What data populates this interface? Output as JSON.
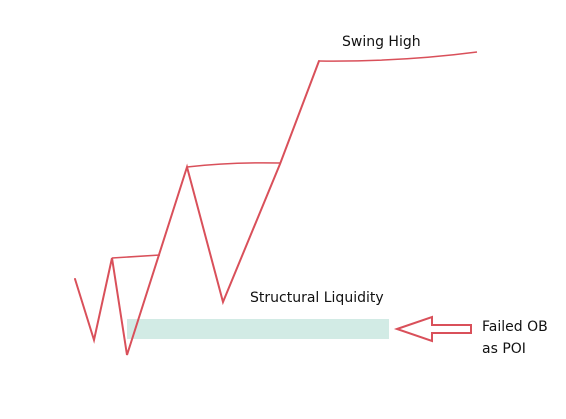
{
  "labels": {
    "swing_high": "Swing High",
    "structural_liquidity": "Structural Liquidity",
    "failed_ob_line1": "Failed OB",
    "failed_ob_line2": "as POI"
  },
  "colors": {
    "line": "#d9505a",
    "zone": "#d2ebe5",
    "text": "#111111",
    "background": "#ffffff"
  }
}
